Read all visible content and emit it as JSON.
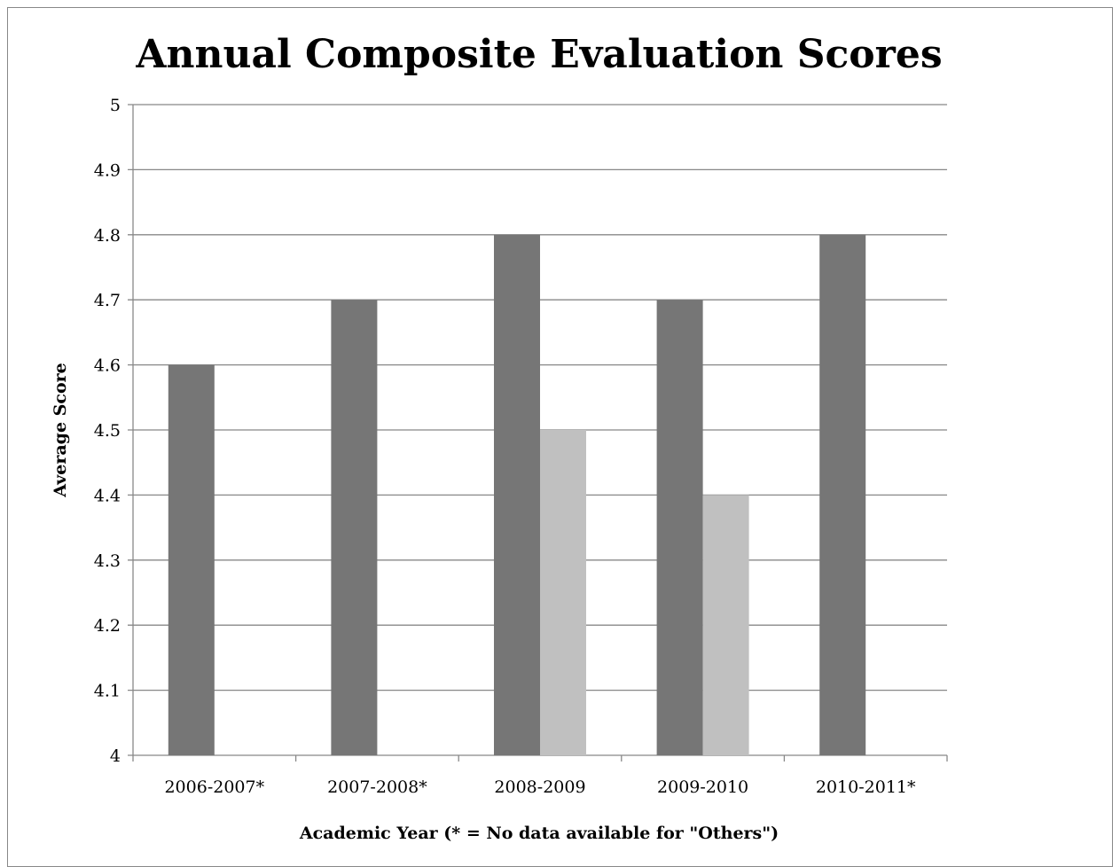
{
  "chart_data": {
    "type": "bar",
    "title": "Annual Composite Evaluation Scores",
    "xlabel": "Academic Year (* = No data available for \"Others\")",
    "ylabel": "Average Score",
    "categories": [
      "2006-2007*",
      "2007-2008*",
      "2008-2009",
      "2009-2010",
      "2010-2011*"
    ],
    "series": [
      {
        "values": [
          4.6,
          4.7,
          4.8,
          4.7,
          4.8
        ],
        "color": "#767676"
      },
      {
        "values": [
          null,
          null,
          4.5,
          4.4,
          null
        ],
        "color": "#c0c0c0"
      }
    ],
    "ylim": [
      4,
      5
    ],
    "yticks": [
      "4",
      "4.1",
      "4.2",
      "4.3",
      "4.4",
      "4.5",
      "4.6",
      "4.7",
      "4.8",
      "4.9",
      "5"
    ],
    "grid": true,
    "legend": "none"
  }
}
